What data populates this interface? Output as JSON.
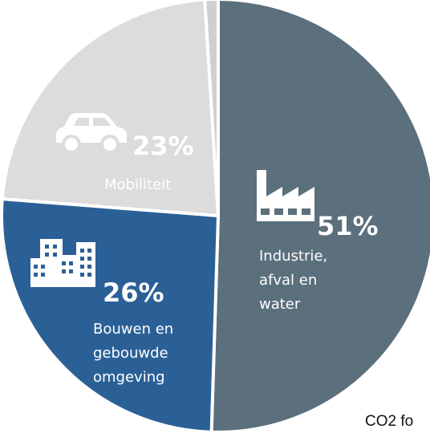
{
  "chart_data": {
    "type": "pie",
    "title": "",
    "slices": [
      {
        "key": "industrie",
        "percent_label": "51%",
        "value": 51,
        "label_lines": [
          "Industrie,",
          "afval en",
          "water"
        ],
        "icon": "factory-icon",
        "color": "#5b6f7d",
        "text_color": "#ffffff"
      },
      {
        "key": "bouwen",
        "percent_label": "26%",
        "value": 26,
        "label_lines": [
          "Bouwen en",
          "gebouwde",
          "omgeving"
        ],
        "icon": "buildings-icon",
        "color": "#2b6097",
        "text_color": "#ffffff"
      },
      {
        "key": "mobiliteit",
        "percent_label": "23%",
        "value": 23,
        "label_lines": [
          "Mobiliteit"
        ],
        "icon": "car-icon",
        "color": "#dcdcdc",
        "text_color": "#ffffff"
      },
      {
        "key": "overig",
        "percent_label": "",
        "value": 1,
        "label_lines": [],
        "icon": "",
        "color": "#cfcfcf",
        "text_color": "#ffffff"
      }
    ]
  },
  "footnote": "CO2 fo"
}
